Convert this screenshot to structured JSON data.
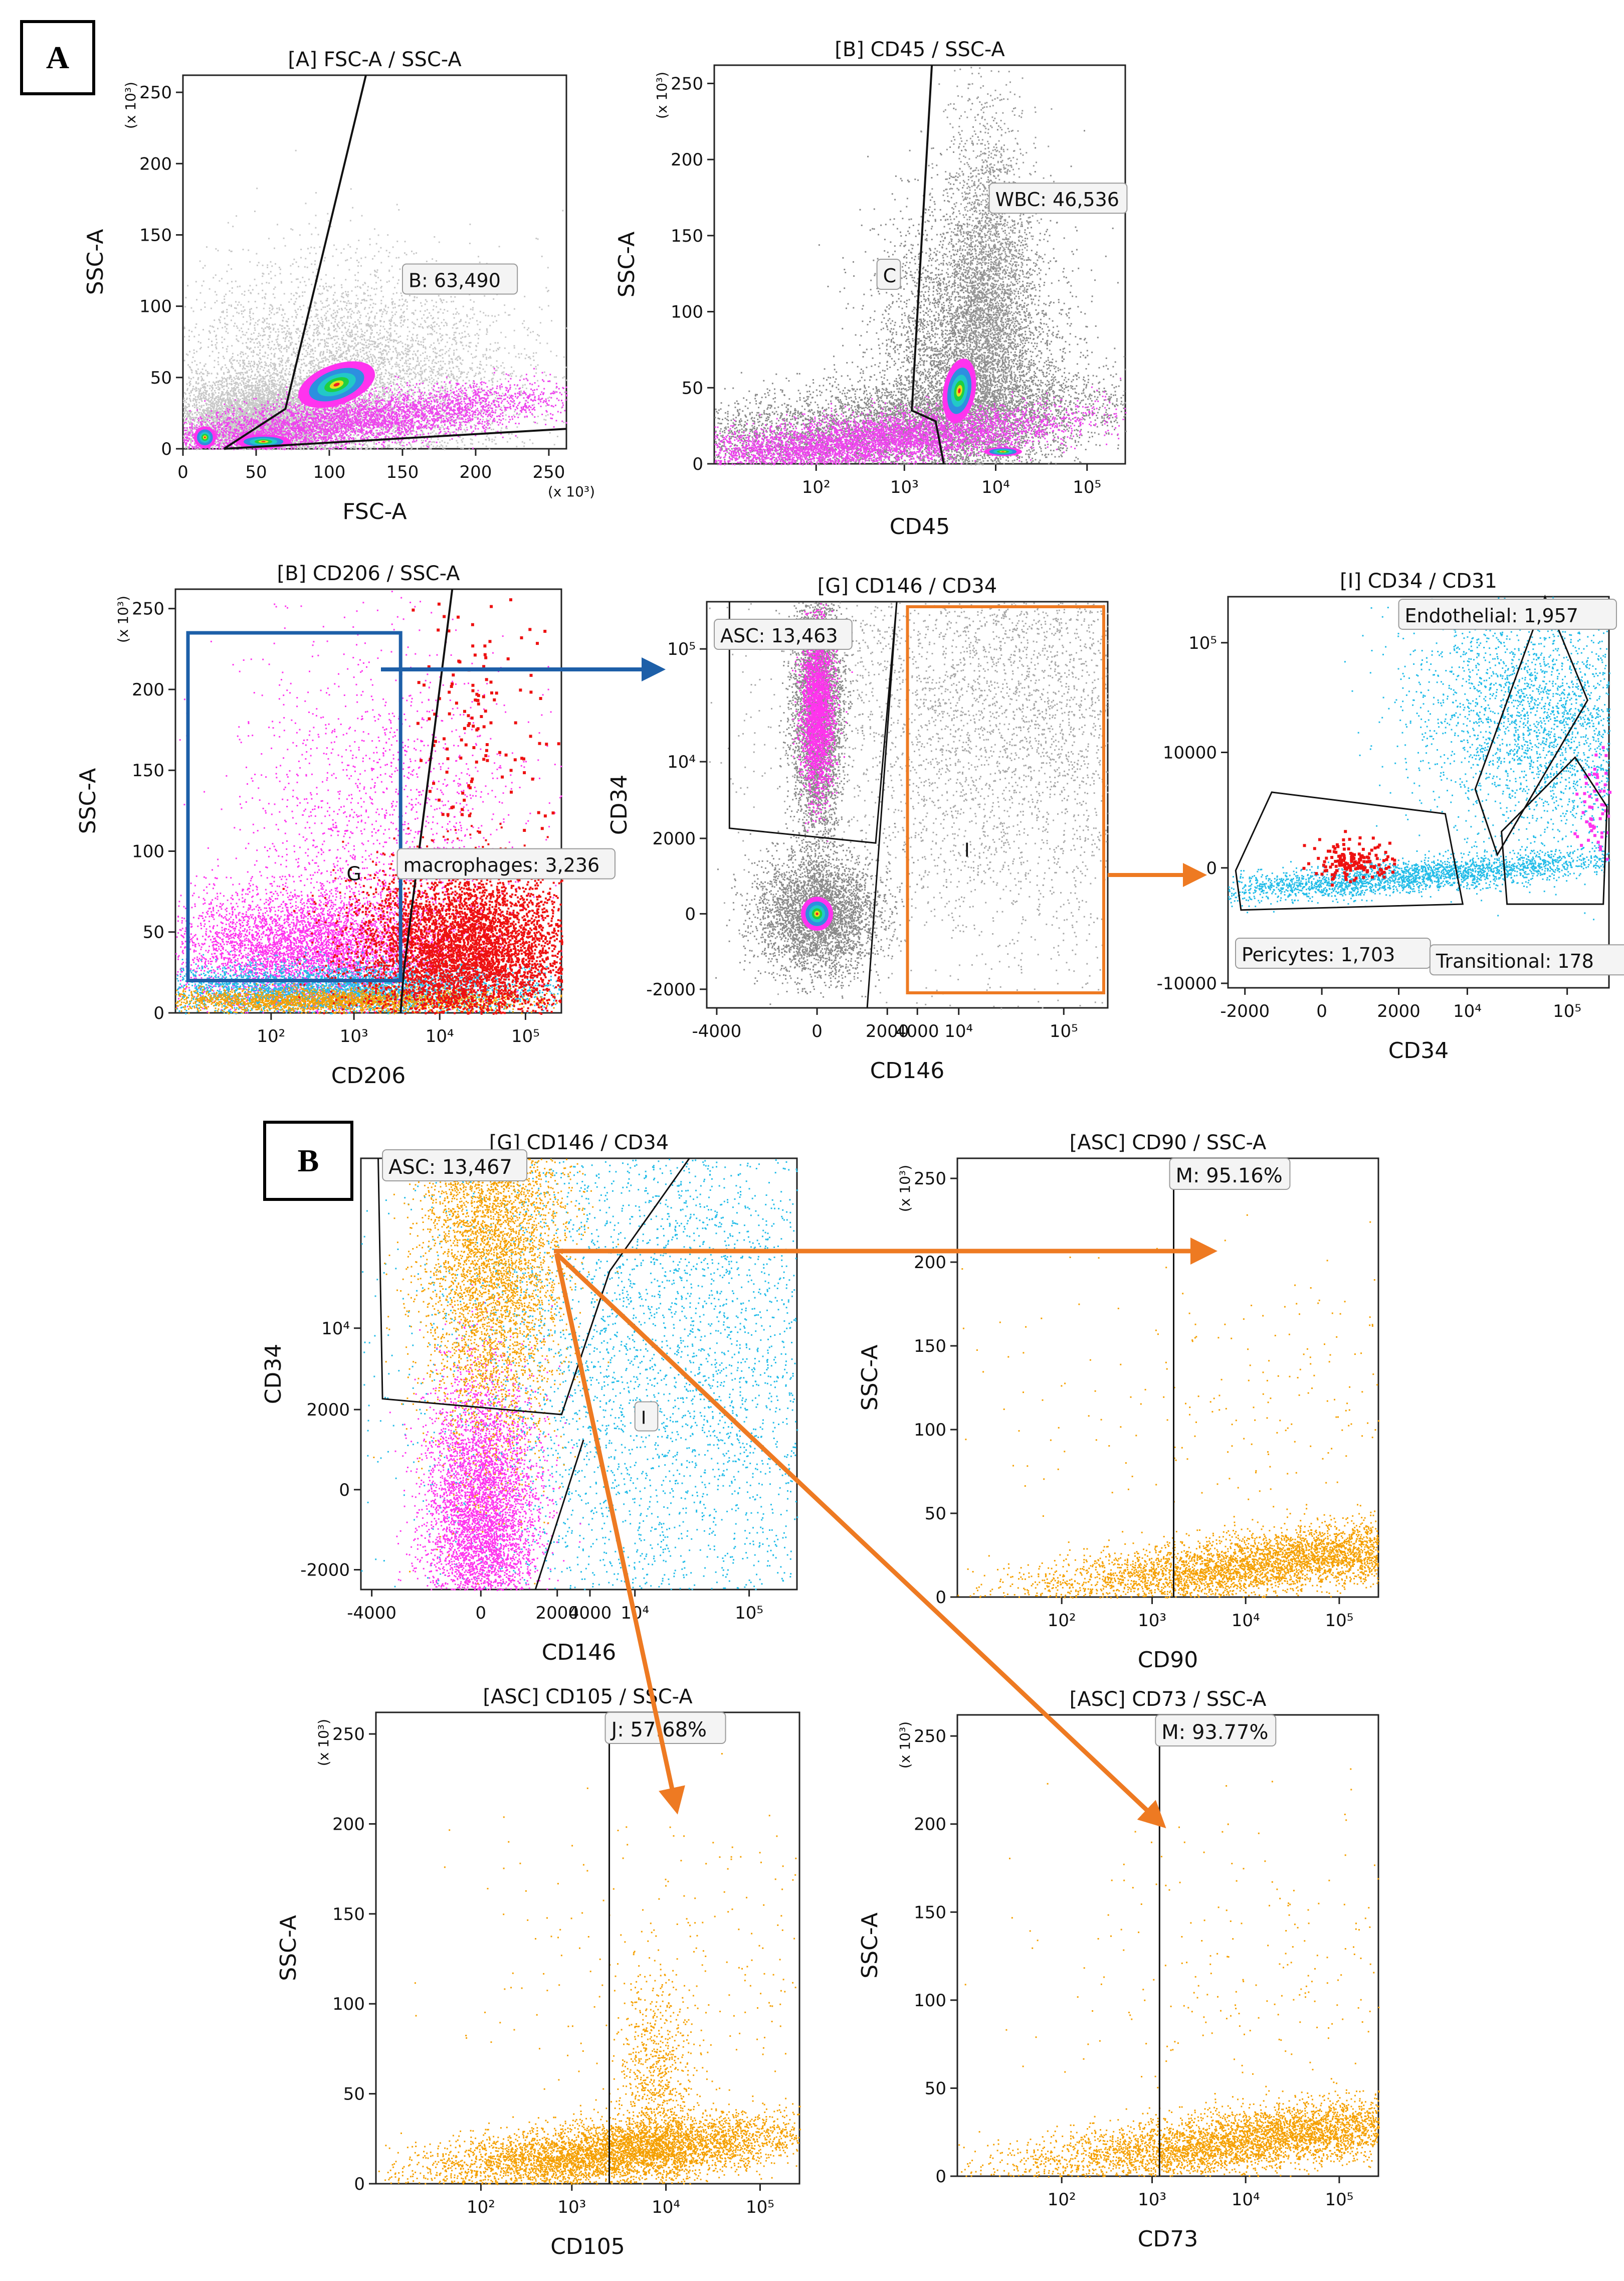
{
  "panel_labels": [
    "A",
    "B"
  ],
  "colors": {
    "gray": "#8f8f8f",
    "lightgray": "#c4c4c4",
    "magenta": "#ff33ee",
    "cyan": "#22bce8",
    "red": "#ee1111",
    "orange": "#f5a000",
    "green": "#19c93a",
    "blue": "#1d5fa8",
    "orangeArrow": "#ee7a22"
  },
  "chart_data": [
    {
      "id": "A1",
      "type": "scatter",
      "title": "[A] FSC-A / SSC-A",
      "xlabel": "FSC-A",
      "ylabel": "SSC-A",
      "xscale": "linear",
      "xlim": [
        0,
        262
      ],
      "ylim": [
        0,
        262
      ],
      "xticks": [
        0,
        50,
        100,
        150,
        200,
        250
      ],
      "xticklabels": [
        "0",
        "50",
        "100",
        "150",
        "200",
        "250"
      ],
      "yticks": [
        0,
        50,
        100,
        150,
        200,
        250
      ],
      "yticklabels": [
        "0",
        "50",
        "100",
        "150",
        "200",
        "250"
      ],
      "x_unit": "(x 10³)",
      "y_unit": "(x 10³)",
      "gates": [
        {
          "label": "B: 63,490",
          "points": [
            [
              28,
              0
            ],
            [
              70,
              28
            ],
            [
              125,
              262
            ]
          ],
          "closing": [
            [
              28,
              0
            ],
            [
              262,
              14
            ]
          ]
        }
      ],
      "populations": [
        "debris near origin",
        "main cell cloud at (~105, ~45)",
        "granular cells along SSC low band"
      ]
    },
    {
      "id": "A2",
      "type": "scatter",
      "title": "[B] CD45 / SSC-A",
      "xlabel": "CD45",
      "ylabel": "SSC-A",
      "xscale": "biexp",
      "xlim": [
        -100,
        262000
      ],
      "ylim": [
        0,
        262
      ],
      "xticks": [
        100,
        1000,
        10000,
        100000
      ],
      "xticklabels": [
        "10²",
        "10³",
        "10⁴",
        "10⁵"
      ],
      "yticks": [
        0,
        50,
        100,
        150,
        200,
        250
      ],
      "yticklabels": [
        "0",
        "50",
        "100",
        "150",
        "200",
        "250"
      ],
      "y_unit": "(x 10³)",
      "gates": [
        {
          "label": "WBC: 46,536"
        },
        {
          "label": "C"
        }
      ]
    },
    {
      "id": "A3",
      "type": "scatter",
      "title": "[B] CD206 / SSC-A",
      "xlabel": "CD206",
      "ylabel": "SSC-A",
      "xscale": "biexp",
      "xlim": [
        -100,
        262000
      ],
      "ylim": [
        0,
        262
      ],
      "xticks": [
        100,
        1000,
        10000,
        100000
      ],
      "xticklabels": [
        "10²",
        "10³",
        "10⁴",
        "10⁵"
      ],
      "yticks": [
        0,
        50,
        100,
        150,
        200,
        250
      ],
      "yticklabels": [
        "0",
        "50",
        "100",
        "150",
        "200",
        "250"
      ],
      "y_unit": "(x 10³)",
      "gates": [
        {
          "label": "macrophages: 3,236"
        },
        {
          "label": "G"
        }
      ]
    },
    {
      "id": "A4",
      "type": "scatter",
      "title": "[G] CD146 / CD34",
      "xlabel": "CD146",
      "ylabel": "CD34",
      "xscale": "biexp",
      "xlim": [
        -5000,
        262000
      ],
      "ylim": [
        -3000,
        262000
      ],
      "xticks": [
        -4000,
        0,
        2000,
        4000,
        10000,
        100000
      ],
      "xticklabels": [
        "-4000",
        "0",
        "2000",
        "4000",
        "10⁴",
        "10⁵"
      ],
      "yticks": [
        -2000,
        0,
        2000,
        10000,
        100000
      ],
      "yticklabels": [
        "-2000",
        "0",
        "2000",
        "10⁴",
        "10⁵"
      ],
      "gates": [
        {
          "label": "ASC: 13,463"
        },
        {
          "label": "I"
        }
      ]
    },
    {
      "id": "A5",
      "type": "scatter",
      "title": "[I] CD34 / CD31",
      "xlabel": "CD34",
      "ylabel": "",
      "xscale": "biexp",
      "xlim": [
        -3000,
        262000
      ],
      "ylim": [
        -11000,
        262000
      ],
      "xticks": [
        -2000,
        0,
        2000,
        10000,
        100000
      ],
      "xticklabels": [
        "-2000",
        "0",
        "2000",
        "10⁴",
        "10⁵"
      ],
      "yticks": [
        -10000,
        0,
        10000,
        100000
      ],
      "yticklabels": [
        "-10000",
        "0",
        "10000",
        "10⁵"
      ],
      "gates": [
        {
          "label": "Endothelial: 1,957"
        },
        {
          "label": "Pericytes: 1,703"
        },
        {
          "label": "Transitional: 178"
        }
      ]
    },
    {
      "id": "B1",
      "type": "scatter",
      "title": "[G] CD146 / CD34",
      "xlabel": "CD146",
      "ylabel": "CD34",
      "xscale": "biexp",
      "xlim": [
        -5000,
        262000
      ],
      "ylim": [
        -3000,
        262000
      ],
      "xticks": [
        -4000,
        0,
        2000,
        4000,
        10000,
        100000
      ],
      "xticklabels": [
        "-4000",
        "0",
        "2000",
        "4000",
        "10⁴",
        "10⁵"
      ],
      "yticks": [
        -2000,
        0,
        2000,
        10000
      ],
      "yticklabels": [
        "-2000",
        "0",
        "2000",
        "10⁴"
      ],
      "gates": [
        {
          "label": "ASC: 13,467"
        },
        {
          "label": "I"
        }
      ]
    },
    {
      "id": "B2",
      "type": "scatter",
      "title": "[ASC] CD90 / SSC-A",
      "xlabel": "CD90",
      "ylabel": "SSC-A",
      "xscale": "biexp",
      "xlim": [
        -100,
        262000
      ],
      "ylim": [
        0,
        262
      ],
      "xticks": [
        100,
        1000,
        10000,
        100000
      ],
      "xticklabels": [
        "10²",
        "10³",
        "10⁴",
        "10⁵"
      ],
      "yticks": [
        0,
        50,
        100,
        150,
        200,
        250
      ],
      "yticklabels": [
        "0",
        "50",
        "100",
        "150",
        "200",
        "250"
      ],
      "y_unit": "(x 10³)",
      "gates": [
        {
          "label": "M: 95.16%",
          "threshold": 1700
        }
      ]
    },
    {
      "id": "B3",
      "type": "scatter",
      "title": "[ASC] CD105 / SSC-A",
      "xlabel": "CD105",
      "ylabel": "SSC-A",
      "xscale": "biexp",
      "xlim": [
        -100,
        262000
      ],
      "ylim": [
        0,
        262
      ],
      "xticks": [
        100,
        1000,
        10000,
        100000
      ],
      "xticklabels": [
        "10²",
        "10³",
        "10⁴",
        "10⁵"
      ],
      "yticks": [
        0,
        50,
        100,
        150,
        200,
        250
      ],
      "yticklabels": [
        "0",
        "50",
        "100",
        "150",
        "200",
        "250"
      ],
      "y_unit": "(x 10³)",
      "gates": [
        {
          "label": "J: 57.68%",
          "threshold": 2500
        }
      ]
    },
    {
      "id": "B4",
      "type": "scatter",
      "title": "[ASC] CD73 / SSC-A",
      "xlabel": "CD73",
      "ylabel": "SSC-A",
      "xscale": "biexp",
      "xlim": [
        -100,
        262000
      ],
      "ylim": [
        0,
        262
      ],
      "xticks": [
        100,
        1000,
        10000,
        100000
      ],
      "xticklabels": [
        "10²",
        "10³",
        "10⁴",
        "10⁵"
      ],
      "yticks": [
        0,
        50,
        100,
        150,
        200,
        250
      ],
      "yticklabels": [
        "0",
        "50",
        "100",
        "150",
        "200",
        "250"
      ],
      "y_unit": "(x 10³)",
      "gates": [
        {
          "label": "M: 93.77%",
          "threshold": 1200
        }
      ]
    }
  ]
}
